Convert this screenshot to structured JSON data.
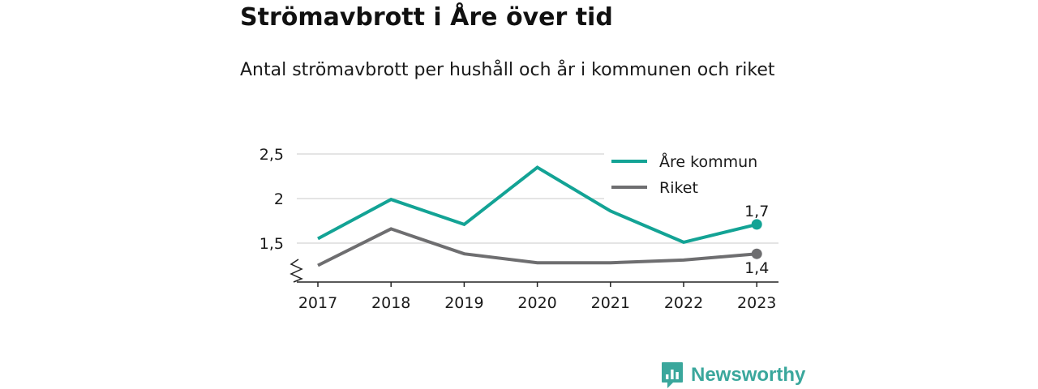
{
  "header": {
    "title": "Strömavbrott i Åre över tid",
    "subtitle": "Antal strömavbrott per hushåll och år i kommunen och riket"
  },
  "chart_data": {
    "type": "line",
    "categories": [
      "2017",
      "2018",
      "2019",
      "2020",
      "2021",
      "2022",
      "2023"
    ],
    "series": [
      {
        "name": "Åre kommun",
        "color": "#13a395",
        "values": [
          1.55,
          1.99,
          1.71,
          2.35,
          1.86,
          1.51,
          1.71
        ],
        "end_label": "1,7"
      },
      {
        "name": "Riket",
        "color": "#6e6e70",
        "values": [
          1.25,
          1.66,
          1.38,
          1.28,
          1.28,
          1.31,
          1.38
        ],
        "end_label": "1,4"
      }
    ],
    "yticks": [
      1.5,
      2,
      2.5
    ],
    "ytick_labels": [
      "1,5",
      "2",
      "2,5"
    ],
    "ylim": [
      1.1,
      2.5
    ],
    "axis_break": true,
    "grid": true,
    "legend": "top-right",
    "xlabel": "",
    "ylabel": ""
  },
  "branding": {
    "name": "Newsworthy",
    "color": "#3aa79c"
  }
}
